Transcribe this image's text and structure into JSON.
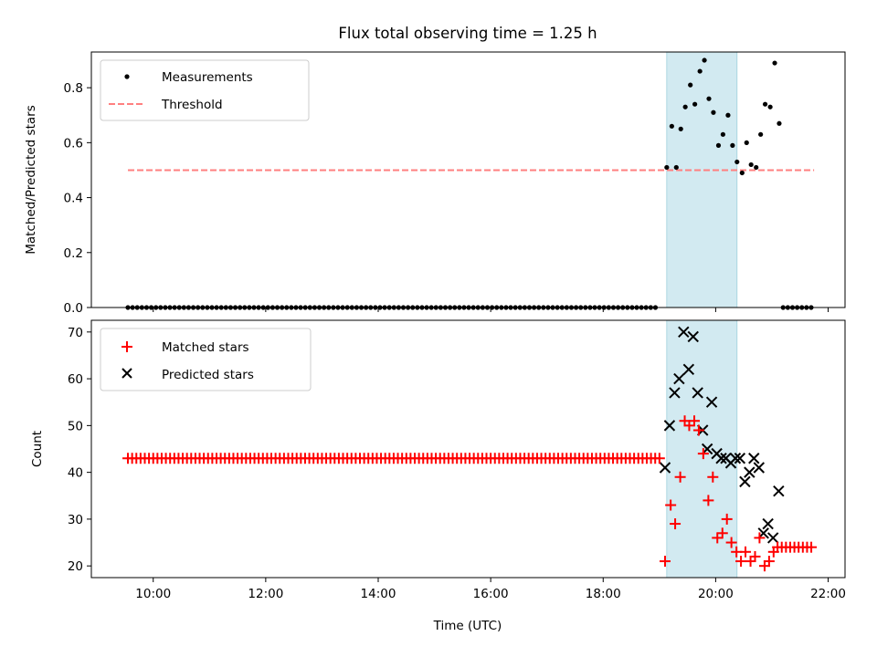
{
  "chart_data": {
    "type": "scatter",
    "title": "Flux total observing time = 1.25 h",
    "xlabel": "Time (UTC)",
    "x_ticks": [
      "10:00",
      "12:00",
      "14:00",
      "16:00",
      "18:00",
      "20:00",
      "22:00"
    ],
    "x_tick_hours": [
      10,
      12,
      14,
      16,
      18,
      20,
      22
    ],
    "xlim_hours": [
      8.9,
      22.3
    ],
    "highlight_span_hours": [
      19.13,
      20.38
    ],
    "colors": {
      "highlight": "#add8e6",
      "measurements": "#000000",
      "threshold": "#ff7f7f",
      "matched": "#ff0000",
      "predicted": "#000000"
    },
    "panels": [
      {
        "ylabel": "Matched/Predicted stars",
        "ylim": [
          0,
          0.93
        ],
        "y_ticks": [
          "0.0",
          "0.2",
          "0.4",
          "0.6",
          "0.8"
        ],
        "y_tick_values": [
          0,
          0.2,
          0.4,
          0.6,
          0.8
        ],
        "legend_position": "upper-left",
        "series": [
          {
            "name": "Measurements",
            "marker": "dot",
            "zero_run": {
              "start_hour": 9.55,
              "end_hour": 19.0,
              "step_hour": 0.083,
              "value": 0
            },
            "tail_zero_run": {
              "start_hour": 21.2,
              "end_hour": 21.75,
              "step_hour": 0.083,
              "value": 0
            },
            "x": [
              19.13,
              19.22,
              19.3,
              19.38,
              19.46,
              19.55,
              19.63,
              19.72,
              19.8,
              19.88,
              19.96,
              20.05,
              20.13,
              20.22,
              20.3,
              20.38,
              20.47,
              20.55,
              20.63,
              20.72,
              20.8,
              20.88,
              20.97,
              21.05,
              21.13
            ],
            "y": [
              0.51,
              0.66,
              0.51,
              0.65,
              0.73,
              0.81,
              0.74,
              0.86,
              0.9,
              0.76,
              0.71,
              0.59,
              0.63,
              0.7,
              0.59,
              0.53,
              0.49,
              0.6,
              0.52,
              0.51,
              0.63,
              0.74,
              0.73,
              0.89,
              0.67
            ]
          },
          {
            "name": "Threshold",
            "style": "dashed-line",
            "x": [
              9.55,
              21.75
            ],
            "y": [
              0.5,
              0.5
            ]
          }
        ]
      },
      {
        "ylabel": "Count",
        "ylim": [
          17.5,
          72.5
        ],
        "y_ticks": [
          "20",
          "30",
          "40",
          "50",
          "60",
          "70"
        ],
        "y_tick_values": [
          20,
          30,
          40,
          50,
          60,
          70
        ],
        "legend_position": "upper-left",
        "series": [
          {
            "name": "Matched stars",
            "marker": "plus",
            "run": {
              "start_hour": 9.55,
              "end_hour": 19.0,
              "step_hour": 0.075,
              "value": 43
            },
            "tail_run": {
              "start_hour": 21.1,
              "end_hour": 21.75,
              "step_hour": 0.075,
              "value": 24
            },
            "x": [
              19.1,
              19.2,
              19.28,
              19.37,
              19.45,
              19.53,
              19.62,
              19.7,
              19.78,
              19.87,
              19.95,
              20.03,
              20.12,
              20.2,
              20.28,
              20.37,
              20.45,
              20.53,
              20.62,
              20.7,
              20.78,
              20.87,
              20.95,
              21.03
            ],
            "y": [
              21,
              33,
              29,
              39,
              51,
              50,
              51,
              49,
              44,
              34,
              39,
              26,
              27,
              30,
              25,
              23,
              21,
              23,
              21,
              22,
              26,
              20,
              21,
              23
            ]
          },
          {
            "name": "Predicted stars",
            "marker": "x",
            "x": [
              19.1,
              19.18,
              19.27,
              19.35,
              19.43,
              19.52,
              19.6,
              19.68,
              19.77,
              19.85,
              19.93,
              20.02,
              20.1,
              20.18,
              20.27,
              20.35,
              20.43,
              20.52,
              20.6,
              20.68,
              20.77,
              20.85,
              20.93,
              21.02,
              21.12
            ],
            "y": [
              41,
              50,
              57,
              60,
              70,
              62,
              69,
              57,
              49,
              45,
              55,
              44,
              43,
              43,
              42,
              43,
              43,
              38,
              40,
              43,
              41,
              27,
              29,
              26,
              36
            ]
          }
        ]
      }
    ]
  }
}
